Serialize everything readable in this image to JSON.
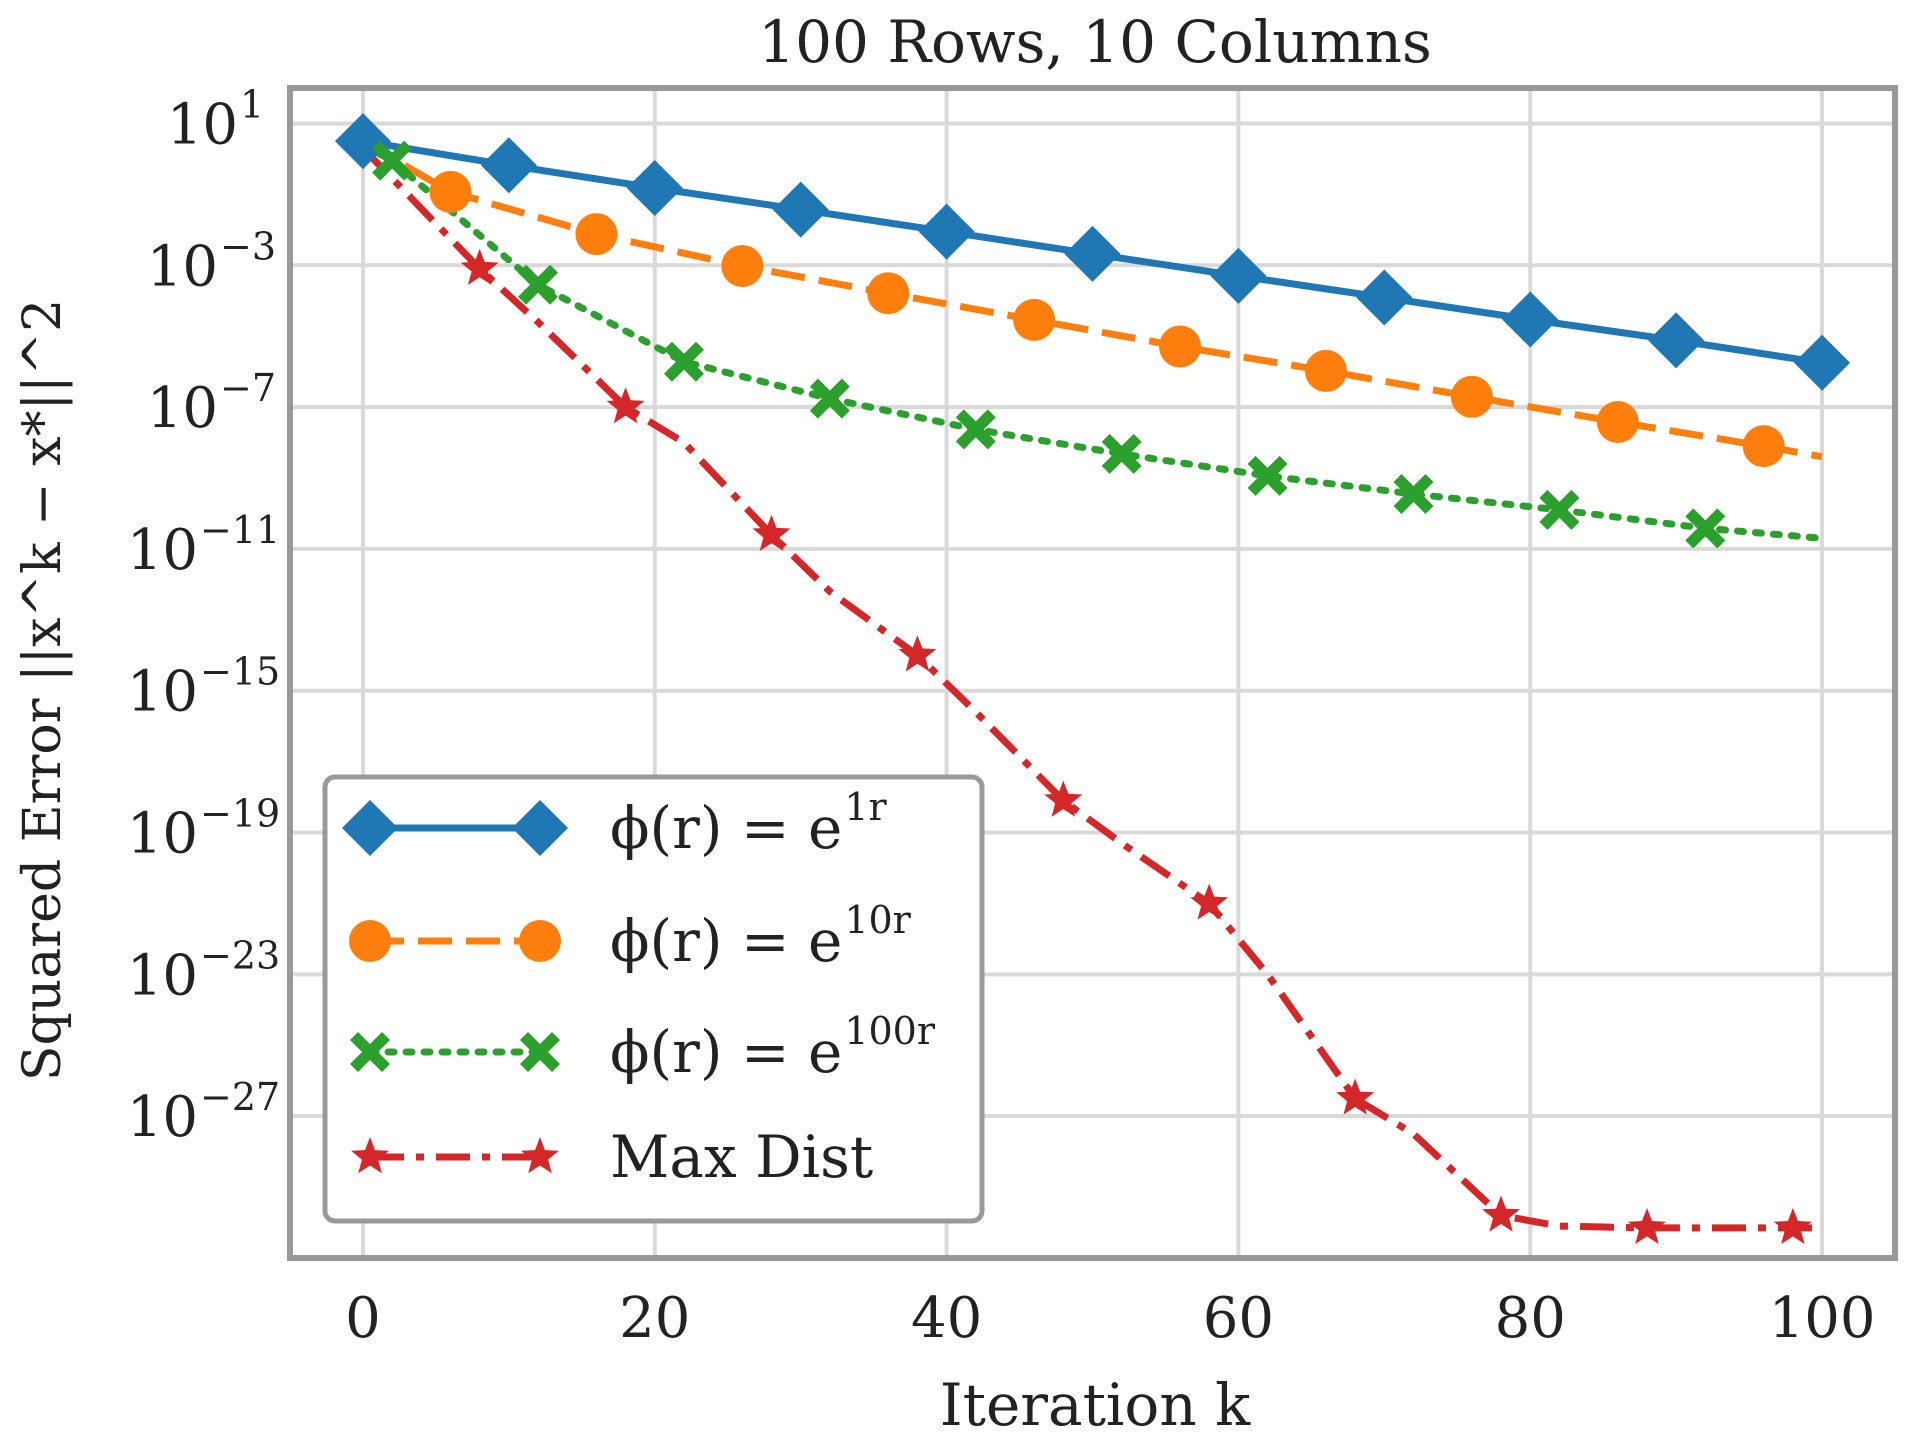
{
  "chart_data": {
    "type": "line",
    "title": "100 Rows, 10 Columns",
    "xlabel": "Iteration k",
    "ylabel": "Squared Error ||x^k − x*||^2",
    "xlim": [
      -5,
      105
    ],
    "yscale": "log",
    "ylim_exponents": [
      2,
      -31
    ],
    "grid": true,
    "x_ticks": [
      0,
      20,
      40,
      60,
      80,
      100
    ],
    "x_tick_labels": [
      "0",
      "20",
      "40",
      "60",
      "80",
      "100"
    ],
    "y_tick_exponents": [
      1,
      -3,
      -7,
      -11,
      -15,
      -19,
      -23,
      -27
    ],
    "y_tick_base": "10",
    "y_tick_exps": [
      "1",
      "−3",
      "−7",
      "−11",
      "−15",
      "−19",
      "−23",
      "−27"
    ],
    "legend_position": "lower-left",
    "series": [
      {
        "name": "φ(r) = e^{1r}",
        "legend_main": "ϕ(r) = e",
        "legend_sup": "1r",
        "color": "#1f77b4",
        "linestyle": "solid",
        "marker": "diamond",
        "x": [
          0,
          10,
          20,
          30,
          40,
          50,
          60,
          70,
          80,
          90,
          100
        ],
        "log10_y": [
          0.5,
          -0.18,
          -0.82,
          -1.43,
          -2.05,
          -2.68,
          -3.3,
          -3.91,
          -4.53,
          -5.12,
          -5.75
        ],
        "marker_x": [
          0,
          10,
          20,
          30,
          40,
          50,
          60,
          70,
          80,
          90,
          100
        ]
      },
      {
        "name": "φ(r) = e^{10r}",
        "legend_main": "ϕ(r) = e",
        "legend_sup": "10r",
        "color": "#ff7f0e",
        "linestyle": "dashed",
        "marker": "circle",
        "x": [
          0,
          6,
          16,
          26,
          36,
          46,
          56,
          66,
          76,
          86,
          96,
          100
        ],
        "log10_y": [
          0.5,
          -0.93,
          -2.12,
          -3.02,
          -3.79,
          -4.54,
          -5.29,
          -5.98,
          -6.71,
          -7.42,
          -8.1,
          -8.4
        ],
        "marker_x": [
          6,
          16,
          26,
          36,
          46,
          56,
          66,
          76,
          86,
          96
        ]
      },
      {
        "name": "φ(r) = e^{100r}",
        "legend_main": "ϕ(r) = e",
        "legend_sup": "100r",
        "color": "#2ca02c",
        "linestyle": "dotted",
        "marker": "x",
        "x": [
          0,
          2,
          12,
          22,
          32,
          42,
          52,
          62,
          72,
          82,
          92,
          100
        ],
        "log10_y": [
          0.4,
          -0.05,
          -3.55,
          -5.72,
          -6.76,
          -7.63,
          -8.32,
          -8.94,
          -9.45,
          -9.9,
          -10.42,
          -10.7
        ],
        "marker_x": [
          2,
          12,
          22,
          32,
          42,
          52,
          62,
          72,
          82,
          92
        ]
      },
      {
        "name": "Max Dist",
        "legend_main": "Max Dist",
        "legend_sup": "",
        "color": "#d62728",
        "linestyle": "dashdot",
        "marker": "star",
        "x": [
          0,
          8,
          12,
          18,
          22,
          28,
          32,
          38,
          42,
          48,
          52,
          58,
          62,
          68,
          72,
          78,
          82,
          88,
          92,
          98,
          100
        ],
        "log10_y": [
          0.3,
          -3.1,
          -4.6,
          -7.0,
          -8.0,
          -10.6,
          -12.2,
          -14.0,
          -15.6,
          -18.1,
          -19.3,
          -21.0,
          -23.0,
          -26.5,
          -27.5,
          -29.8,
          -30.1,
          -30.15,
          -30.15,
          -30.15,
          -30.15
        ],
        "marker_x": [
          8,
          18,
          28,
          38,
          48,
          58,
          68,
          78,
          88,
          98
        ]
      }
    ]
  }
}
